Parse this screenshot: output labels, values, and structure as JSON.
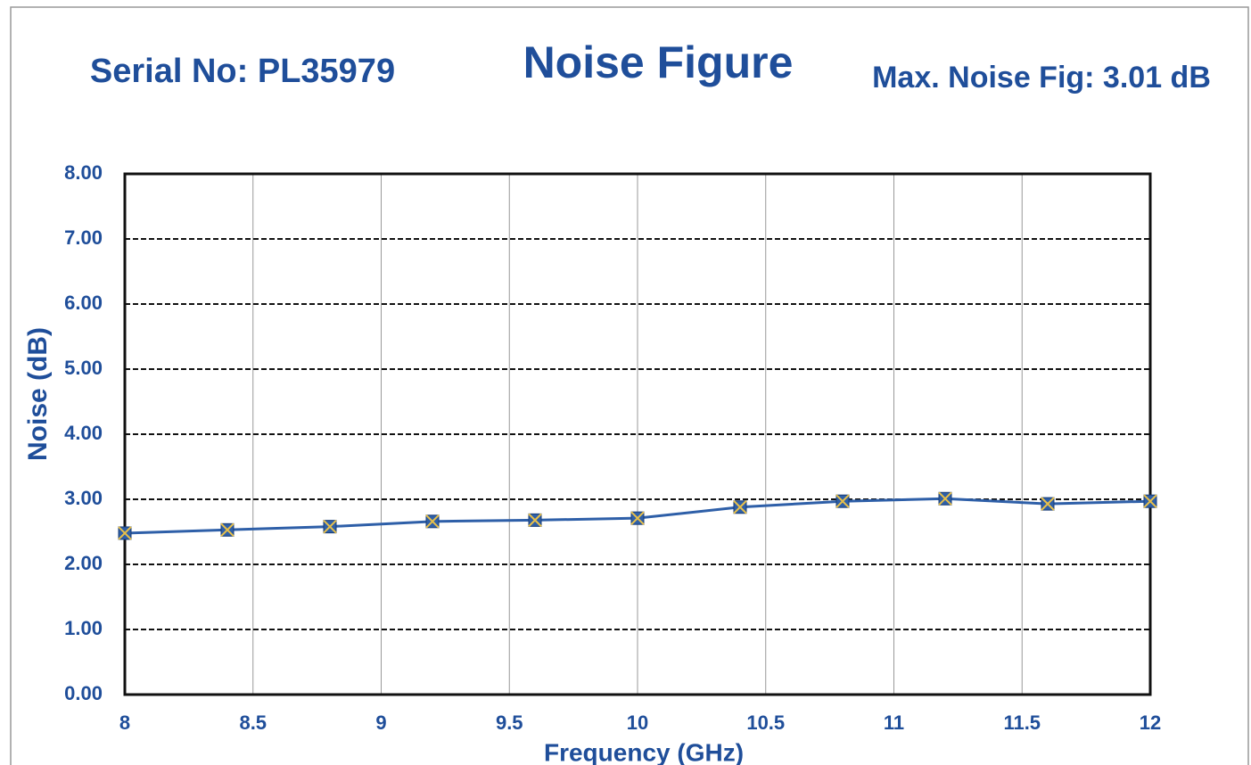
{
  "chart_data": {
    "type": "line",
    "title": "Noise Figure",
    "subtitle_left": "Serial No: PL35979",
    "subtitle_right": "Max. Noise Fig:  3.01 dB",
    "x_label": "Frequency (GHz)",
    "y_label": "Noise (dB)",
    "x": [
      8,
      8.4,
      8.8,
      9.2,
      9.6,
      10,
      10.4,
      10.8,
      11.2,
      11.6,
      12
    ],
    "series": [
      {
        "name": "Noise",
        "color": "#2e5fa8",
        "values": [
          2.48,
          2.53,
          2.58,
          2.66,
          2.68,
          2.71,
          2.88,
          2.97,
          3.01,
          2.93,
          2.97
        ]
      }
    ],
    "xlim": [
      8,
      12
    ],
    "xticks": [
      8,
      8.5,
      9,
      9.5,
      10,
      10.5,
      11,
      11.5,
      12
    ],
    "ylim": [
      0,
      8
    ],
    "yticks": [
      {
        "value": 0,
        "label": "0.00"
      },
      {
        "value": 1,
        "label": "1.00"
      },
      {
        "value": 2,
        "label": "2.00"
      },
      {
        "value": 3,
        "label": "3.00"
      },
      {
        "value": 4,
        "label": "4.00"
      },
      {
        "value": 5,
        "label": "5.00"
      },
      {
        "value": 6,
        "label": "6.00"
      },
      {
        "value": 7,
        "label": "7.00"
      },
      {
        "value": 8,
        "label": "8.00"
      }
    ],
    "grid": true
  }
}
